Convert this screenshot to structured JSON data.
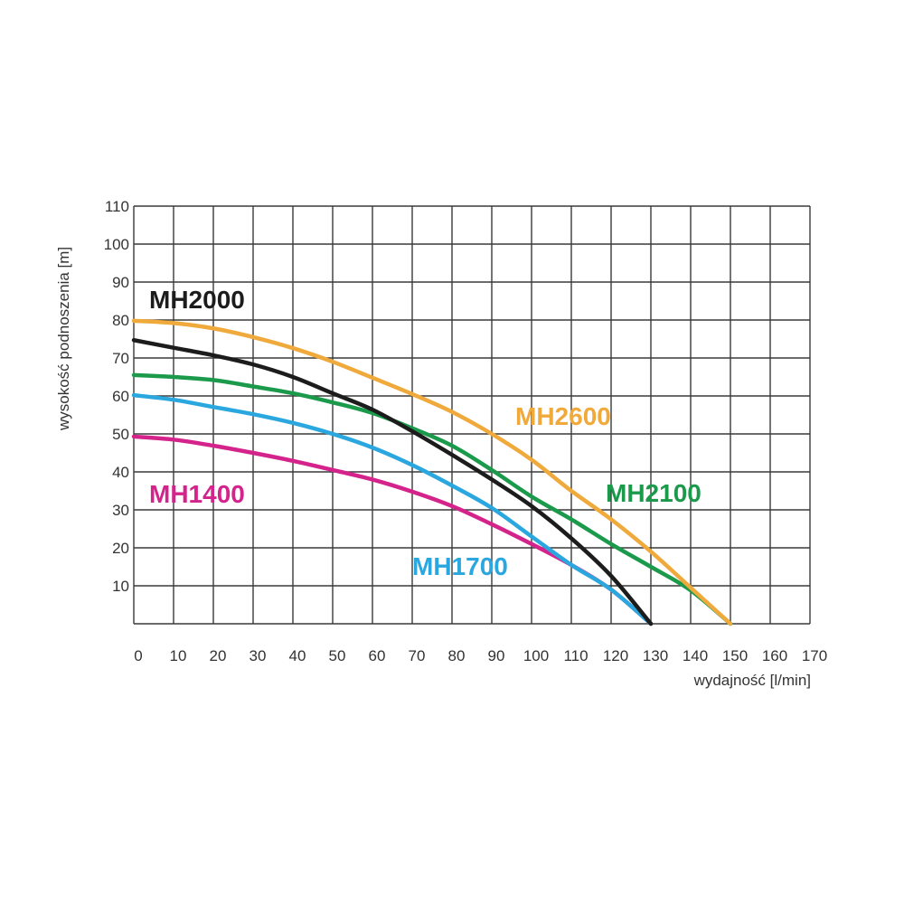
{
  "chart_data": {
    "type": "line",
    "title": "",
    "xlabel": "wydajność [l/min]",
    "ylabel": "wysokość podnoszenia [m]",
    "xlim": [
      0,
      170
    ],
    "ylim": [
      0,
      110
    ],
    "grid": true,
    "x_ticks": [
      0,
      10,
      20,
      30,
      40,
      50,
      60,
      70,
      80,
      90,
      100,
      110,
      120,
      130,
      140,
      150,
      160,
      170
    ],
    "y_ticks": [
      10,
      20,
      30,
      40,
      50,
      60,
      70,
      80,
      90,
      100,
      110
    ],
    "series": [
      {
        "name": "MH2600",
        "color": "#f0a93b",
        "x": [
          0,
          10,
          20,
          30,
          40,
          50,
          60,
          70,
          80,
          90,
          100,
          110,
          120,
          130,
          140,
          150
        ],
        "y": [
          79.8,
          79.2,
          77.8,
          75.5,
          72.6,
          69,
          64.8,
          60.5,
          55.8,
          50,
          43.2,
          35,
          27.5,
          19,
          9.5,
          0
        ]
      },
      {
        "name": "MH2000",
        "color": "#1c1c1c",
        "x": [
          0,
          10,
          20,
          30,
          40,
          50,
          60,
          70,
          80,
          90,
          100,
          110,
          120,
          130
        ],
        "y": [
          74.7,
          72.7,
          70.7,
          68.3,
          65,
          60.7,
          56.4,
          50.7,
          44.5,
          38,
          31,
          22.5,
          12.6,
          0
        ]
      },
      {
        "name": "MH2100",
        "color": "#1b9a4b",
        "x": [
          0,
          10,
          20,
          30,
          40,
          50,
          60,
          70,
          80,
          90,
          100,
          110,
          120,
          130,
          140,
          150
        ],
        "y": [
          65.5,
          65,
          64.2,
          62.5,
          60.7,
          58.3,
          55.5,
          51.5,
          46.9,
          40.5,
          33.5,
          27.5,
          21,
          15,
          8.8,
          0
        ]
      },
      {
        "name": "MH1700",
        "color": "#2aa7df",
        "x": [
          0,
          10,
          20,
          30,
          40,
          50,
          60,
          70,
          80,
          90,
          100,
          110,
          120,
          130
        ],
        "y": [
          60.2,
          59,
          57.1,
          55.2,
          52.9,
          50,
          46.4,
          41.8,
          36.4,
          30.5,
          23,
          15.5,
          9,
          0
        ]
      },
      {
        "name": "MH1400",
        "color": "#d4238b",
        "x": [
          0,
          10,
          20,
          30,
          40,
          50,
          60,
          70,
          80,
          90,
          100,
          110,
          120,
          130
        ],
        "y": [
          49.3,
          48.5,
          46.9,
          45,
          42.9,
          40.5,
          38,
          34.8,
          31,
          26.2,
          21,
          15.5,
          9,
          0
        ]
      }
    ]
  }
}
